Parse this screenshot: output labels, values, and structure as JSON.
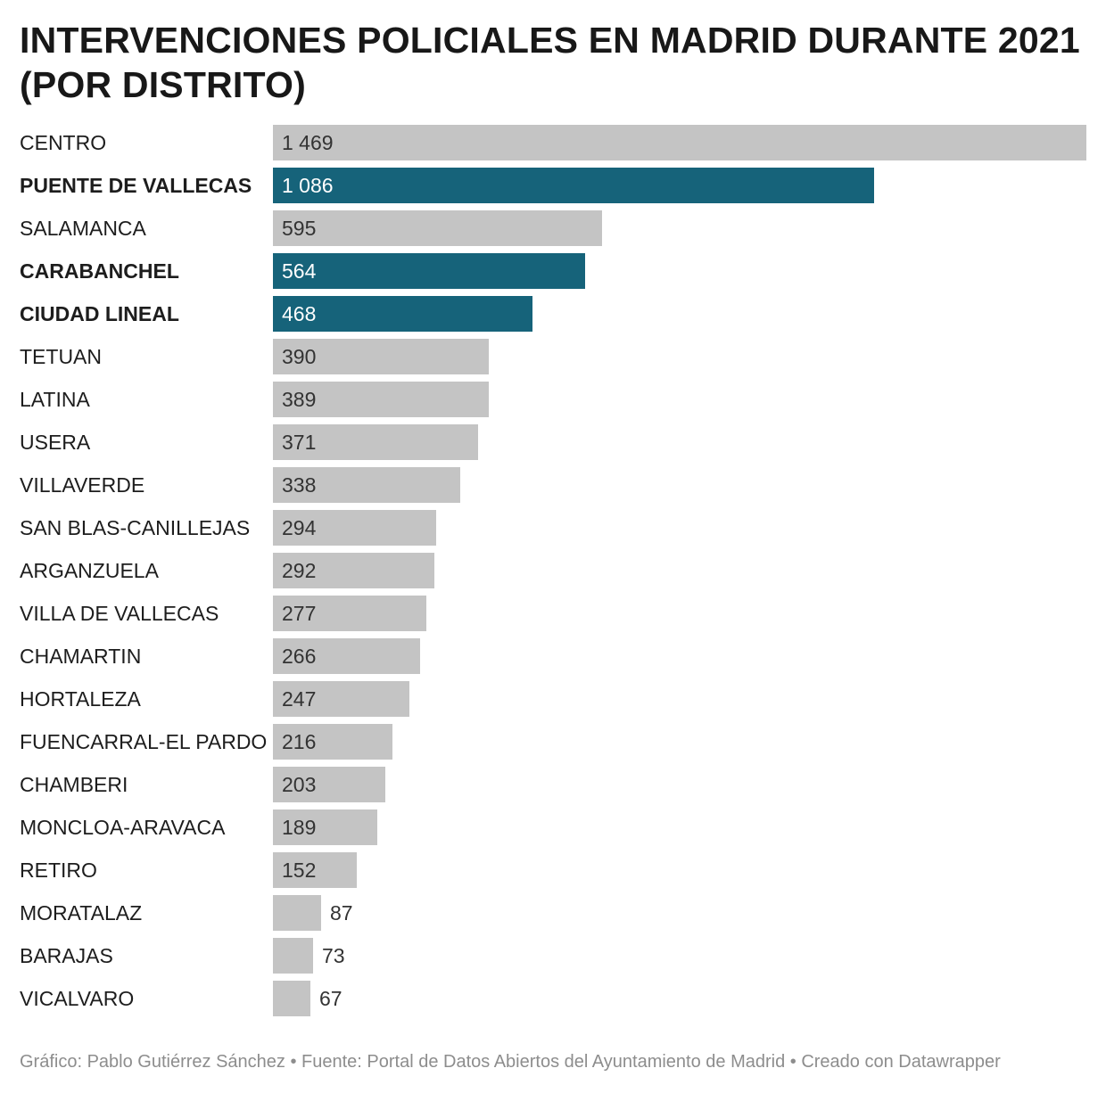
{
  "title": "INTERVENCIONES POLICIALES EN MADRID DURANTE 2021 (POR DISTRITO)",
  "footer": "Gráfico: Pablo Gutiérrez Sánchez • Fuente: Portal de Datos Abiertos del Ayuntamiento de Madrid • Creado con Datawrapper",
  "colors": {
    "bar_default": "#c4c4c4",
    "bar_highlight": "#16637a",
    "label_on_default": "#333333",
    "label_on_highlight": "#ffffff",
    "footer": "#8d8d8d"
  },
  "chart_data": {
    "type": "bar",
    "orientation": "horizontal",
    "title": "INTERVENCIONES POLICIALES EN MADRID DURANTE 2021 (POR DISTRITO)",
    "xlim": [
      0,
      1469
    ],
    "grid": false,
    "legend": "none",
    "categories": [
      "CENTRO",
      "PUENTE DE VALLECAS",
      "SALAMANCA",
      "CARABANCHEL",
      "CIUDAD LINEAL",
      "TETUAN",
      "LATINA",
      "USERA",
      "VILLAVERDE",
      "SAN BLAS-CANILLEJAS",
      "ARGANZUELA",
      "VILLA DE VALLECAS",
      "CHAMARTIN",
      "HORTALEZA",
      "FUENCARRAL-EL PARDO",
      "CHAMBERI",
      "MONCLOA-ARAVACA",
      "RETIRO",
      "MORATALAZ",
      "BARAJAS",
      "VICALVARO"
    ],
    "values": [
      1469,
      1086,
      595,
      564,
      468,
      390,
      389,
      371,
      338,
      294,
      292,
      277,
      266,
      247,
      216,
      203,
      189,
      152,
      87,
      73,
      67
    ],
    "value_labels": [
      "1 469",
      "1 086",
      "595",
      "564",
      "468",
      "390",
      "389",
      "371",
      "338",
      "294",
      "292",
      "277",
      "266",
      "247",
      "216",
      "203",
      "189",
      "152",
      "87",
      "73",
      "67"
    ],
    "highlighted": [
      "PUENTE DE VALLECAS",
      "CARABANCHEL",
      "CIUDAD LINEAL"
    ]
  }
}
